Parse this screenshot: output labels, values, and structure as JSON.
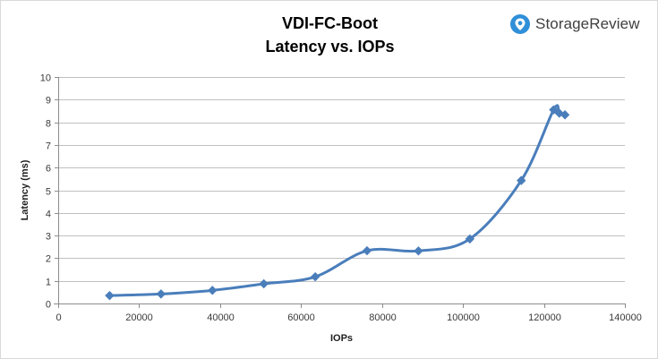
{
  "chart_data": {
    "type": "line",
    "title": "VDI-FC-Boot",
    "subtitle": "Latency vs. IOPs",
    "xlabel": "IOPs",
    "ylabel": "Latency (ms)",
    "xlim": [
      0,
      140000
    ],
    "ylim": [
      0,
      10
    ],
    "x_ticks": [
      "0",
      "20000",
      "40000",
      "60000",
      "80000",
      "100000",
      "120000",
      "140000"
    ],
    "y_ticks": [
      "0",
      "1",
      "2",
      "3",
      "4",
      "5",
      "6",
      "7",
      "8",
      "9",
      "10"
    ],
    "grid": "horizontal",
    "legend": "none",
    "marker": "diamond",
    "smooth": true,
    "series": [
      {
        "color": "#4a7ebb",
        "points": [
          {
            "x": 12700,
            "y": 0.35
          },
          {
            "x": 25400,
            "y": 0.42
          },
          {
            "x": 38100,
            "y": 0.58
          },
          {
            "x": 50800,
            "y": 0.87
          },
          {
            "x": 63500,
            "y": 1.18
          },
          {
            "x": 76300,
            "y": 2.33
          },
          {
            "x": 89000,
            "y": 2.32
          },
          {
            "x": 101700,
            "y": 2.85
          },
          {
            "x": 114400,
            "y": 5.43
          },
          {
            "x": 122400,
            "y": 8.55
          },
          {
            "x": 123800,
            "y": 8.4
          },
          {
            "x": 125200,
            "y": 8.33
          }
        ]
      }
    ]
  },
  "brand": {
    "name": "StorageReview",
    "icon": "storagereview-logo-icon"
  },
  "colors": {
    "line": "#4a7ebb",
    "grid": "#c0c0c0",
    "axis": "#8c8c8c",
    "brand_icon": "#2f8fd8"
  }
}
